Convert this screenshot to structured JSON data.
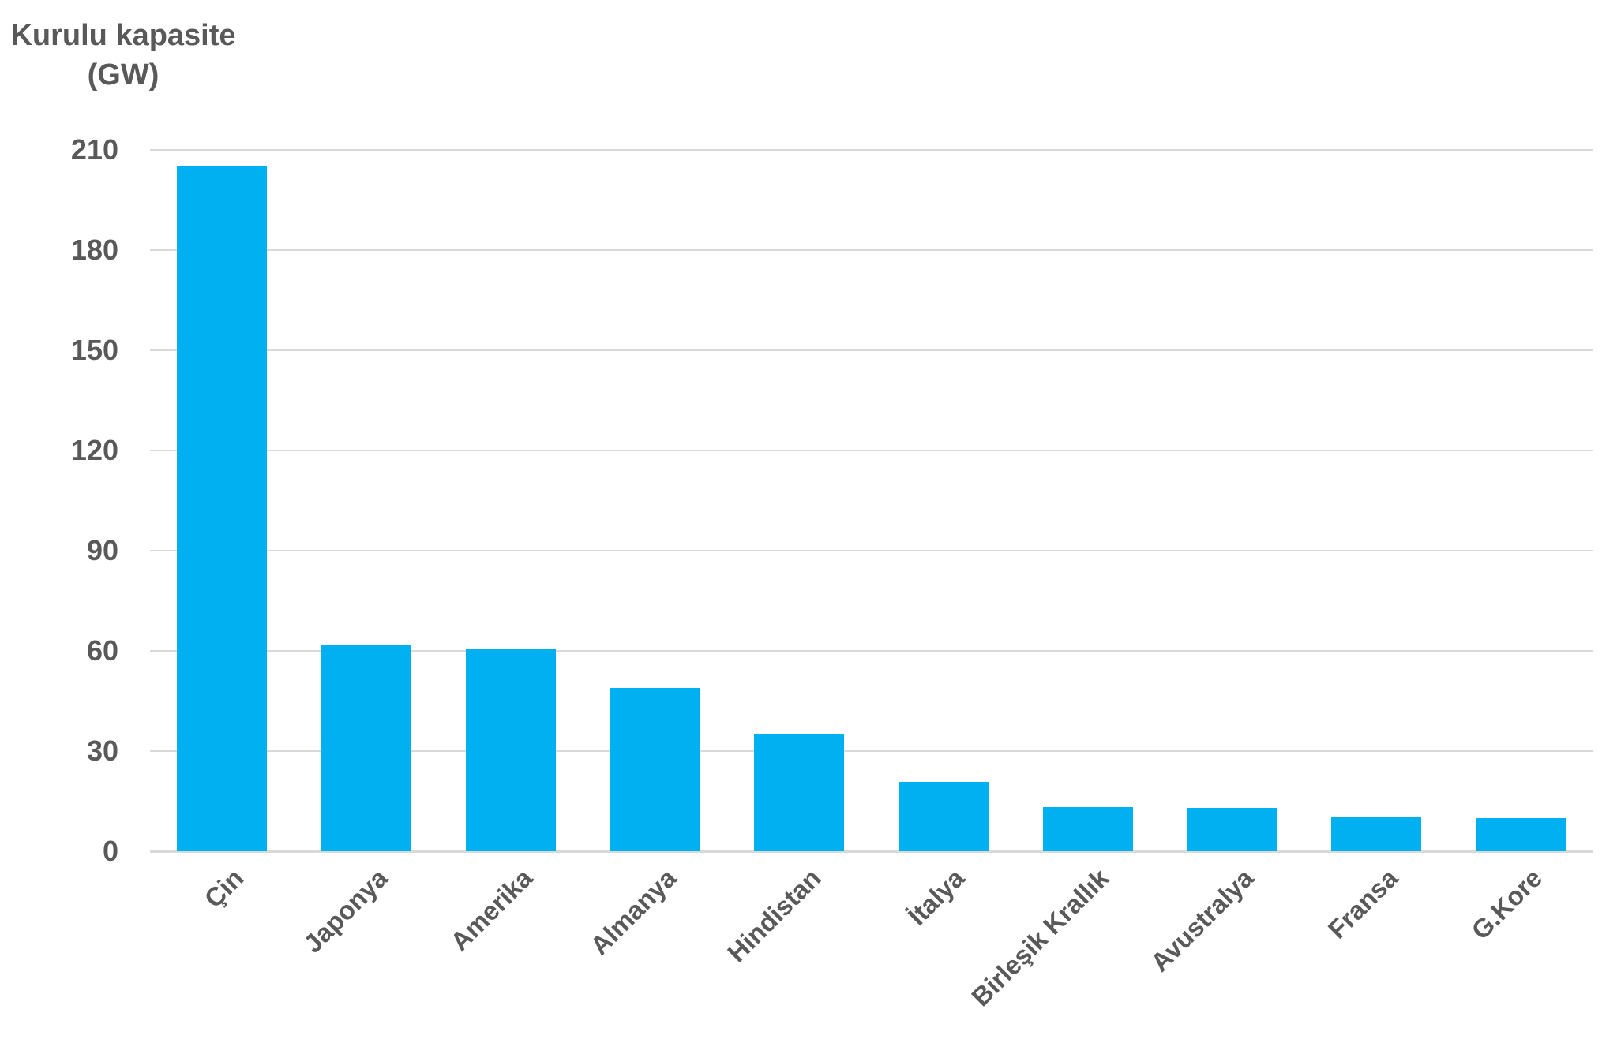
{
  "page": {
    "background": "#ffffff"
  },
  "chart_data": {
    "type": "bar",
    "title": "",
    "ylabel_line1": "Kurulu kapasite",
    "ylabel_line2": "(GW)",
    "unit": "GW",
    "categories": [
      "Çin",
      "Japonya",
      "Amerika",
      "Almanya",
      "Hindistan",
      "İtalya",
      "Birleşik Krallık",
      "Avustralya",
      "Fransa",
      "G.Kore"
    ],
    "values": [
      205,
      62,
      60.5,
      49,
      35,
      20.7,
      13.3,
      12.9,
      10.2,
      10
    ],
    "ylim": [
      0,
      210
    ],
    "ytick_step": 30,
    "yticks": [
      0,
      30,
      60,
      90,
      120,
      150,
      180,
      210
    ],
    "grid": "horizontal",
    "legend": "none",
    "bar_color": "#00B0F0",
    "text_color": "#595959",
    "gridline_color": "#D9D9D9"
  }
}
